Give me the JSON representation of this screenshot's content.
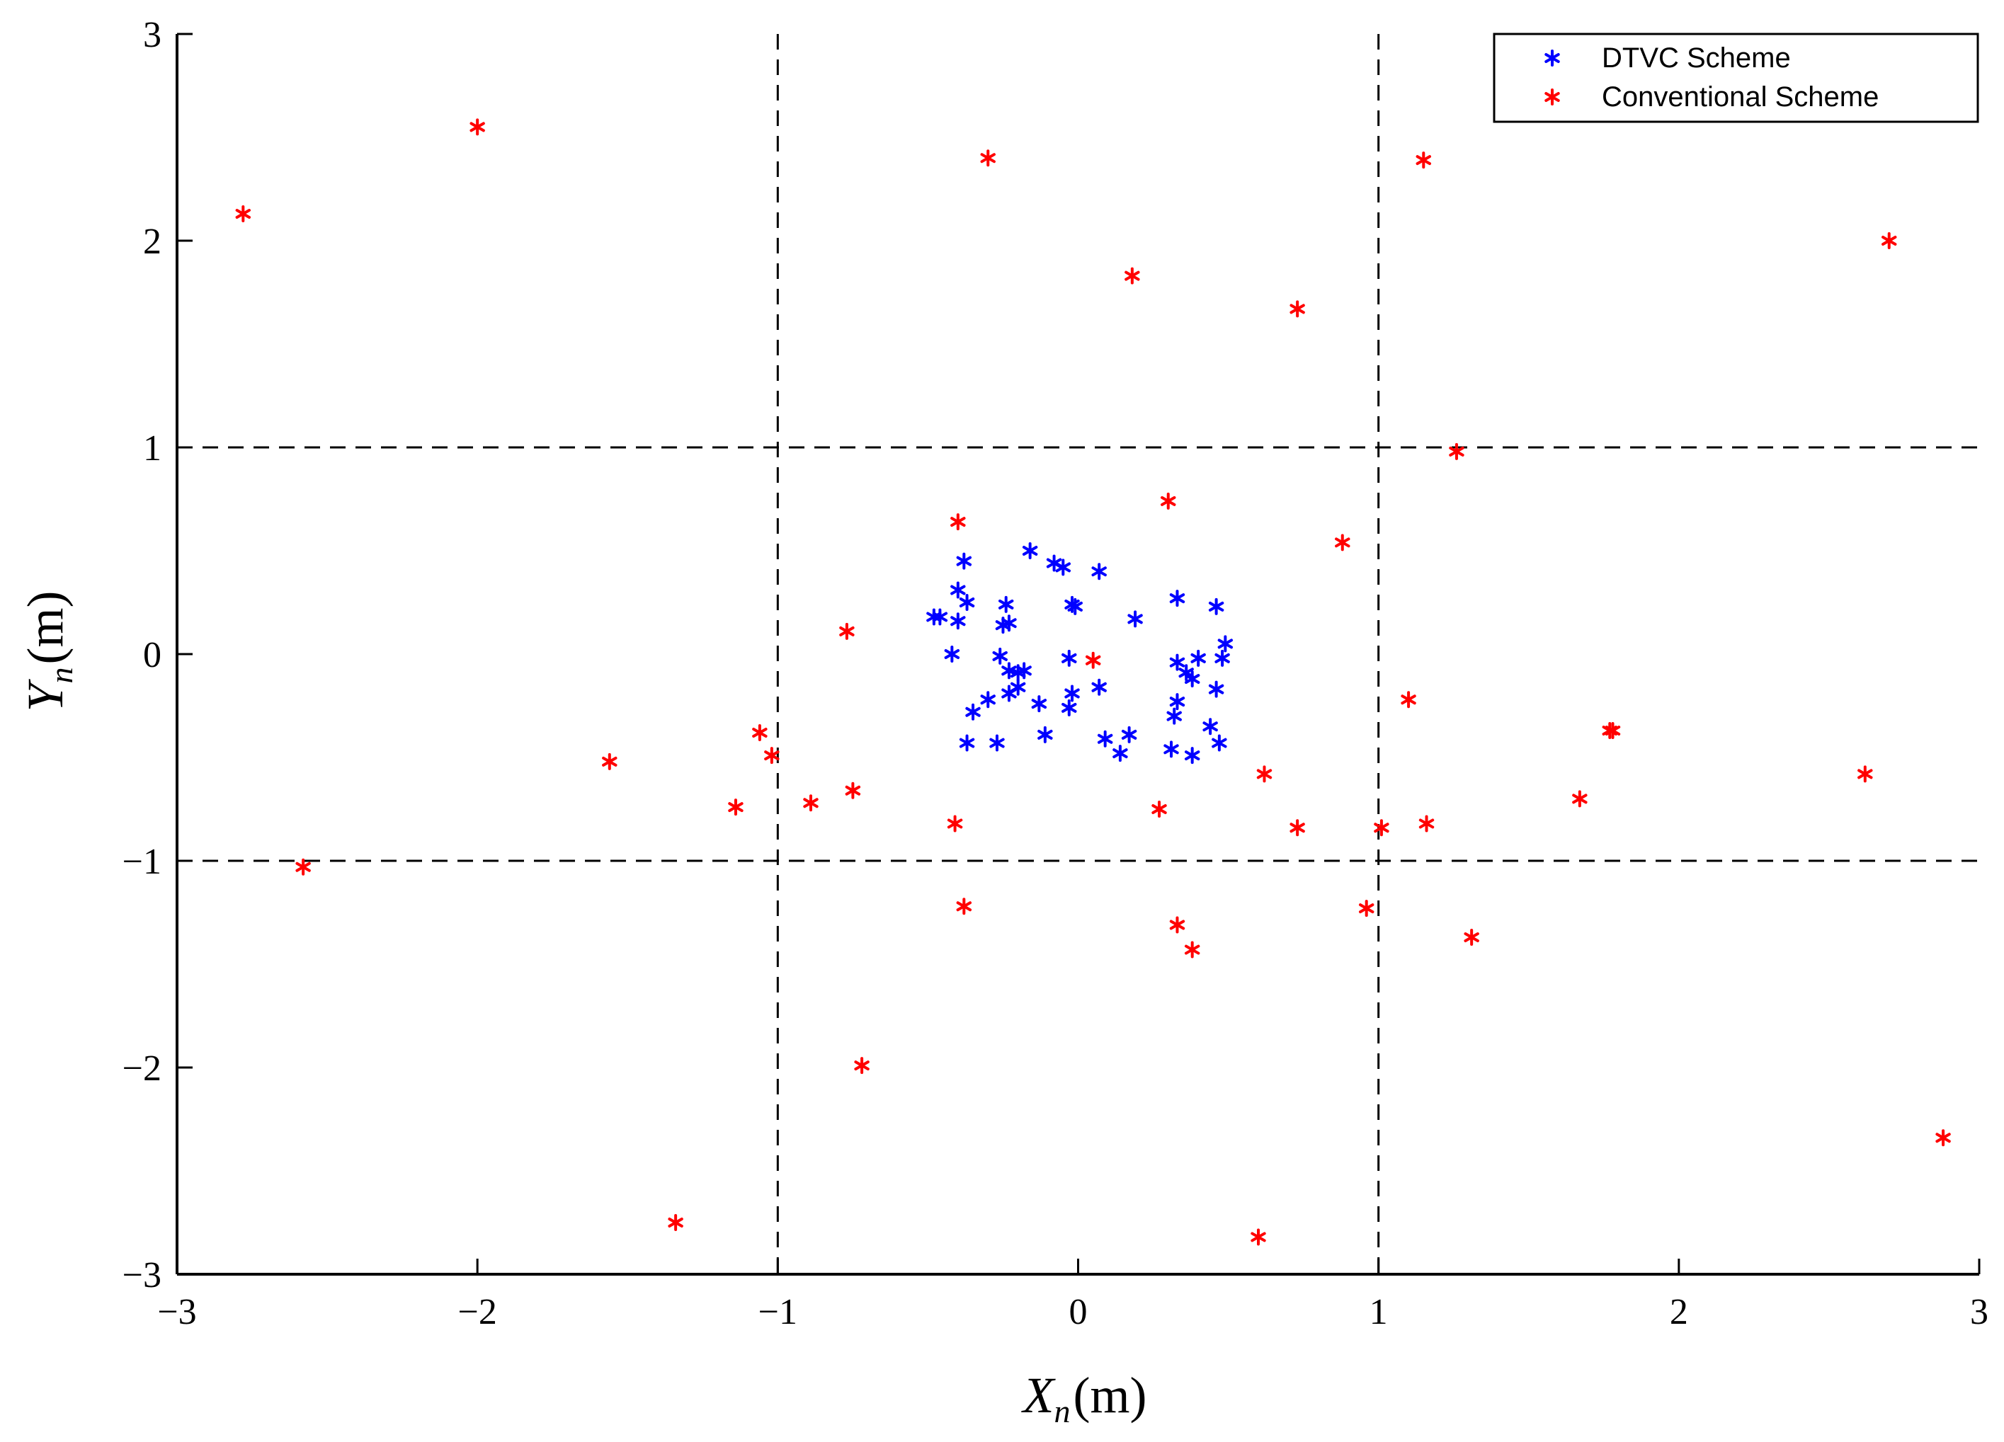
{
  "chart_data": {
    "type": "scatter",
    "title": "",
    "xlabel": {
      "main": "X",
      "sub": "n",
      "unit": "(m)"
    },
    "ylabel": {
      "main": "Y",
      "sub": "n",
      "unit": "(m)"
    },
    "xlim": [
      -3,
      3
    ],
    "ylim": [
      -3,
      3
    ],
    "xticks": [
      -3,
      -2,
      -1,
      0,
      1,
      2,
      3
    ],
    "yticks": [
      -3,
      -2,
      -1,
      0,
      1,
      2,
      3
    ],
    "xtick_labels": [
      "−3",
      "−2",
      "−1",
      "0",
      "1",
      "2",
      "3"
    ],
    "ytick_labels": [
      "−3",
      "−2",
      "−1",
      "0",
      "1",
      "2",
      "3"
    ],
    "reference_lines": {
      "x": [
        -1,
        1
      ],
      "y": [
        -1,
        1
      ],
      "style": "dashed"
    },
    "grid": false,
    "marker": "*",
    "legend": {
      "position": "top-right"
    },
    "series": [
      {
        "name": "DTVC Scheme",
        "color": "#0000ff",
        "points": [
          [
            -0.16,
            0.5
          ],
          [
            -0.08,
            0.44
          ],
          [
            -0.05,
            0.42
          ],
          [
            0.07,
            0.4
          ],
          [
            -0.38,
            0.45
          ],
          [
            -0.4,
            0.31
          ],
          [
            -0.37,
            0.25
          ],
          [
            -0.24,
            0.24
          ],
          [
            -0.02,
            0.24
          ],
          [
            -0.01,
            0.23
          ],
          [
            0.33,
            0.27
          ],
          [
            0.46,
            0.23
          ],
          [
            -0.46,
            0.18
          ],
          [
            -0.48,
            0.18
          ],
          [
            -0.4,
            0.16
          ],
          [
            -0.25,
            0.14
          ],
          [
            -0.23,
            0.15
          ],
          [
            0.19,
            0.17
          ],
          [
            0.49,
            0.05
          ],
          [
            -0.42,
            0.0
          ],
          [
            -0.26,
            -0.01
          ],
          [
            -0.03,
            -0.02
          ],
          [
            0.33,
            -0.04
          ],
          [
            0.4,
            -0.02
          ],
          [
            0.48,
            -0.02
          ],
          [
            -0.23,
            -0.08
          ],
          [
            -0.2,
            -0.09
          ],
          [
            -0.18,
            -0.08
          ],
          [
            0.36,
            -0.09
          ],
          [
            0.38,
            -0.12
          ],
          [
            -0.2,
            -0.16
          ],
          [
            -0.23,
            -0.19
          ],
          [
            -0.3,
            -0.22
          ],
          [
            -0.02,
            -0.19
          ],
          [
            0.07,
            -0.16
          ],
          [
            0.46,
            -0.17
          ],
          [
            -0.35,
            -0.28
          ],
          [
            -0.13,
            -0.24
          ],
          [
            -0.03,
            -0.26
          ],
          [
            0.33,
            -0.23
          ],
          [
            0.32,
            -0.3
          ],
          [
            0.44,
            -0.35
          ],
          [
            -0.11,
            -0.39
          ],
          [
            0.09,
            -0.41
          ],
          [
            0.17,
            -0.39
          ],
          [
            -0.37,
            -0.43
          ],
          [
            -0.27,
            -0.43
          ],
          [
            0.47,
            -0.43
          ],
          [
            0.14,
            -0.48
          ],
          [
            0.31,
            -0.46
          ],
          [
            0.38,
            -0.49
          ]
        ]
      },
      {
        "name": "Conventional Scheme",
        "color": "#ff0000",
        "points": [
          [
            -2.78,
            2.13
          ],
          [
            -2.0,
            2.55
          ],
          [
            -0.3,
            2.4
          ],
          [
            1.15,
            2.39
          ],
          [
            2.7,
            2.0
          ],
          [
            0.18,
            1.83
          ],
          [
            0.73,
            1.67
          ],
          [
            1.26,
            0.98
          ],
          [
            0.3,
            0.74
          ],
          [
            -0.4,
            0.64
          ],
          [
            0.88,
            0.54
          ],
          [
            -0.77,
            0.11
          ],
          [
            0.05,
            -0.03
          ],
          [
            1.1,
            -0.22
          ],
          [
            1.78,
            -0.37
          ],
          [
            1.77,
            -0.37
          ],
          [
            -1.06,
            -0.38
          ],
          [
            -1.02,
            -0.49
          ],
          [
            -1.56,
            -0.52
          ],
          [
            0.62,
            -0.58
          ],
          [
            2.62,
            -0.58
          ],
          [
            -0.75,
            -0.66
          ],
          [
            -0.89,
            -0.72
          ],
          [
            1.67,
            -0.7
          ],
          [
            -1.14,
            -0.74
          ],
          [
            0.27,
            -0.75
          ],
          [
            -0.41,
            -0.82
          ],
          [
            0.73,
            -0.84
          ],
          [
            1.01,
            -0.84
          ],
          [
            1.16,
            -0.82
          ],
          [
            -2.58,
            -1.03
          ],
          [
            -0.38,
            -1.22
          ],
          [
            0.96,
            -1.23
          ],
          [
            0.33,
            -1.31
          ],
          [
            0.38,
            -1.43
          ],
          [
            1.31,
            -1.37
          ],
          [
            -0.72,
            -1.99
          ],
          [
            -1.34,
            -2.75
          ],
          [
            0.6,
            -2.82
          ],
          [
            2.88,
            -2.34
          ]
        ]
      }
    ]
  }
}
